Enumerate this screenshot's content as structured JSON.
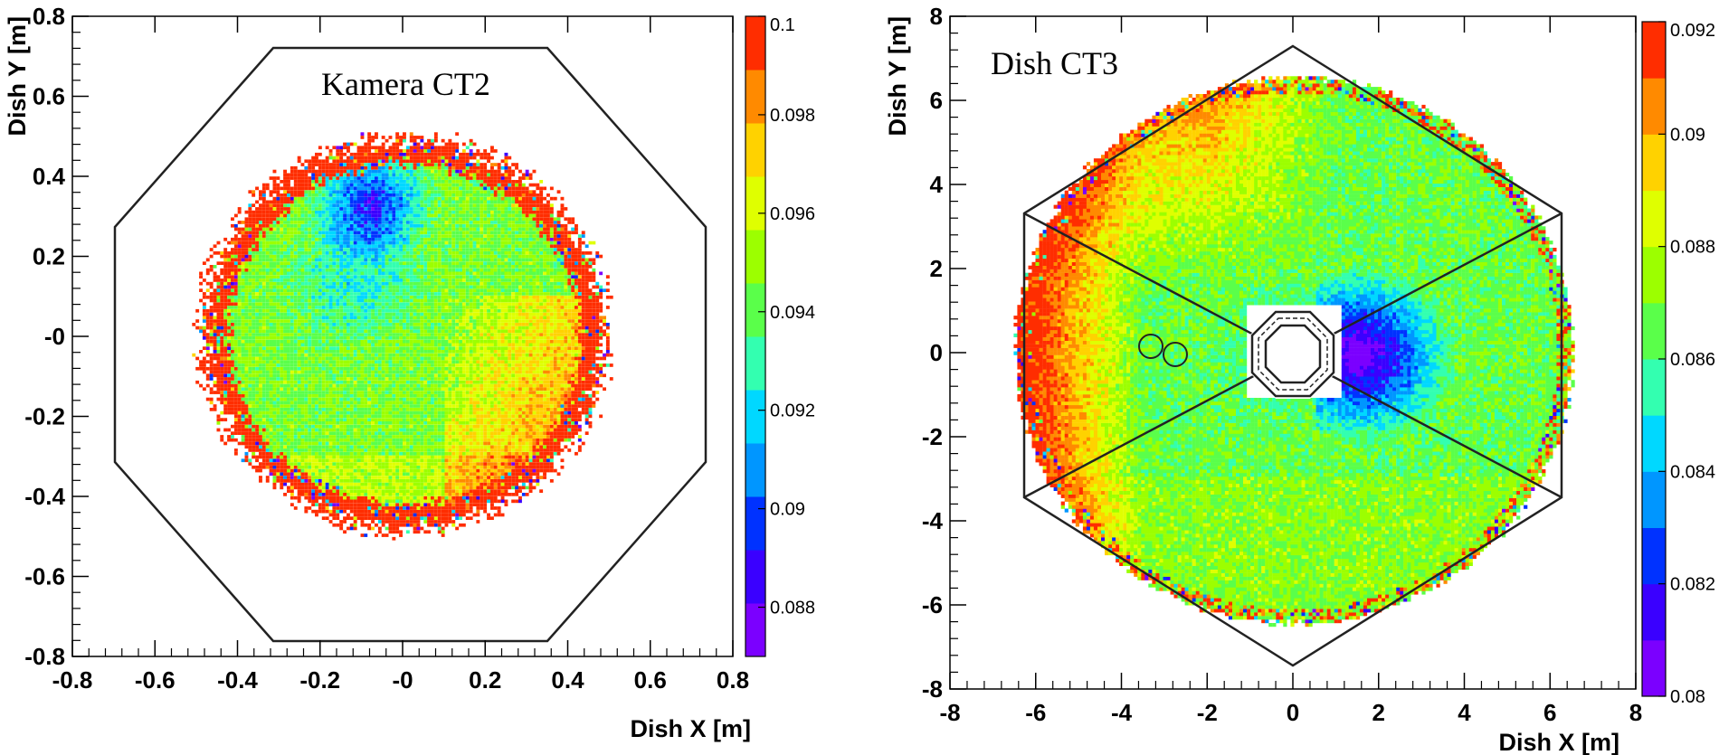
{
  "chart_data": [
    {
      "type": "heatmap",
      "title": "Kamera CT2",
      "xlabel": "Dish X [m]",
      "ylabel": "Dish Y [m]",
      "xlim": [
        -0.8,
        0.8
      ],
      "ylim": [
        -0.8,
        0.8
      ],
      "x_ticks": [
        "-0.8",
        "-0.6",
        "-0.4",
        "-0.2",
        "-0",
        "0.2",
        "0.4",
        "0.6",
        "0.8"
      ],
      "y_ticks": [
        "-0.8",
        "-0.6",
        "-0.4",
        "-0.2",
        "-0",
        "0.2",
        "0.4",
        "0.6",
        "0.8"
      ],
      "colorbar": {
        "range": [
          0.087,
          0.1
        ],
        "ticks": [
          "0.088",
          "0.09",
          "0.092",
          "0.094",
          "0.096",
          "0.098",
          "0.1"
        ]
      },
      "spot": {
        "center": [
          0.0,
          0.0
        ],
        "radius": 0.49
      },
      "overlay": "octagon"
    },
    {
      "type": "heatmap",
      "title": "Dish CT3",
      "xlabel": "Dish X [m]",
      "ylabel": "Dish Y [m]",
      "xlim": [
        -8,
        8
      ],
      "ylim": [
        -8,
        8
      ],
      "x_ticks": [
        "-8",
        "-6",
        "-4",
        "-2",
        "0",
        "2",
        "4",
        "6",
        "8"
      ],
      "y_ticks": [
        "-8",
        "-6",
        "-4",
        "-2",
        "0",
        "2",
        "4",
        "6",
        "8"
      ],
      "colorbar": {
        "range": [
          0.08,
          0.092
        ],
        "ticks": [
          "0.08",
          "0.082",
          "0.084",
          "0.086",
          "0.088",
          "0.09",
          "0.092"
        ],
        "tick_labels_shown": [
          "0.08",
          "0.082",
          "0.084",
          "0.086",
          "0.088",
          "0.09",
          "0.092"
        ]
      },
      "dish": {
        "center": [
          0.0,
          0.0
        ],
        "radius": 6.5,
        "hexagon_radius": 7.4
      },
      "overlay": "hexagon"
    }
  ],
  "colors": {
    "frame": "#000000",
    "scale": [
      "#7b00ff",
      "#3a00ff",
      "#0032ff",
      "#0096ff",
      "#00d8ff",
      "#33ffb0",
      "#5aff4a",
      "#9cff00",
      "#dfff00",
      "#ffd200",
      "#ff8a00",
      "#ff2d00"
    ]
  }
}
